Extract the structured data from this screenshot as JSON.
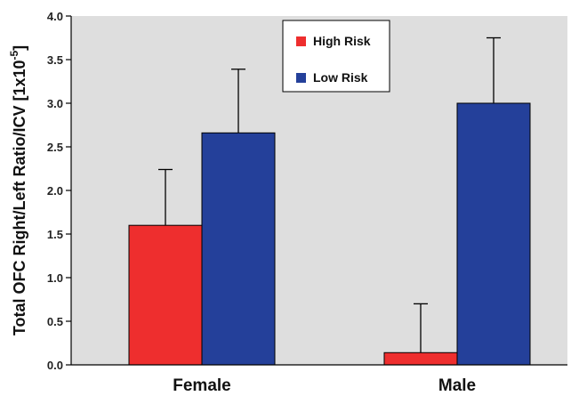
{
  "chart_data": {
    "type": "bar",
    "categories": [
      "Female",
      "Male"
    ],
    "series": [
      {
        "name": "High Risk",
        "values": [
          1.6,
          0.14
        ],
        "errors": [
          0.64,
          0.56
        ],
        "color": "#ee2e2e"
      },
      {
        "name": "Low Risk",
        "values": [
          2.66,
          3.0
        ],
        "errors": [
          0.73,
          0.75
        ],
        "color": "#24409a"
      }
    ],
    "ylabel_text": "Total OFC Right/Left Ratio/ICV [1x10",
    "ylabel_exponent": "-5",
    "ylabel_close": "]",
    "ylim": [
      0.0,
      4.0
    ],
    "yticks": [
      "0.0",
      "0.5",
      "1.0",
      "1.5",
      "2.0",
      "2.5",
      "3.0",
      "3.5",
      "4.0"
    ],
    "legend_position": "top-center",
    "grid": false,
    "plot_background": "#dedede"
  }
}
